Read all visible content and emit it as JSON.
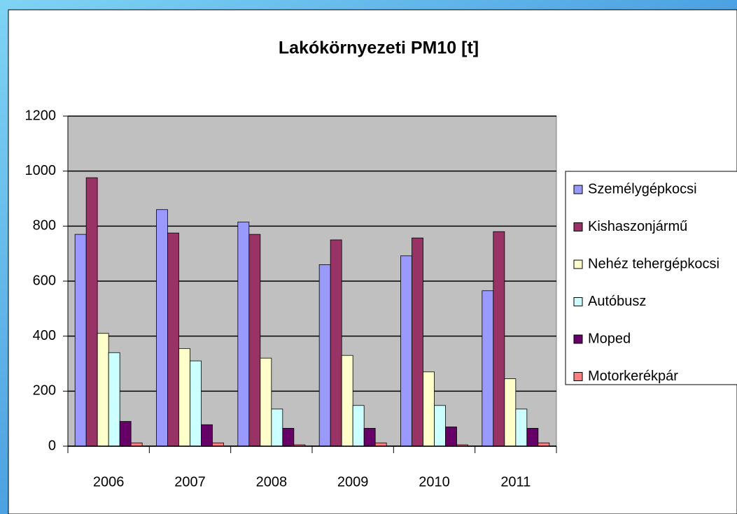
{
  "chart_data": {
    "type": "bar",
    "title": "Lakókörnyezeti PM10 [t]",
    "categories": [
      "2006",
      "2007",
      "2008",
      "2009",
      "2010",
      "2011"
    ],
    "series": [
      {
        "name": "Személygépkocsi",
        "color": "#9999ff",
        "values": [
          770,
          860,
          815,
          660,
          692,
          565
        ]
      },
      {
        "name": "Kishaszonjármű",
        "color": "#993366",
        "values": [
          976,
          775,
          770,
          750,
          757,
          780
        ]
      },
      {
        "name": "Nehéz tehergépkocsi",
        "color": "#ffffcc",
        "values": [
          410,
          355,
          320,
          330,
          270,
          245
        ]
      },
      {
        "name": "Autóbusz",
        "color": "#ccffff",
        "values": [
          340,
          310,
          135,
          148,
          148,
          135
        ]
      },
      {
        "name": "Moped",
        "color": "#660066",
        "values": [
          90,
          78,
          65,
          65,
          70,
          65
        ]
      },
      {
        "name": "Motorkerékpár",
        "color": "#ff8080",
        "values": [
          12,
          12,
          5,
          12,
          5,
          12
        ]
      }
    ],
    "ylim": [
      0,
      1200
    ],
    "yticks": [
      0,
      200,
      400,
      600,
      800,
      1000,
      1200
    ],
    "grid": true,
    "plot_background": "#c0c0c0",
    "legend": "right"
  }
}
